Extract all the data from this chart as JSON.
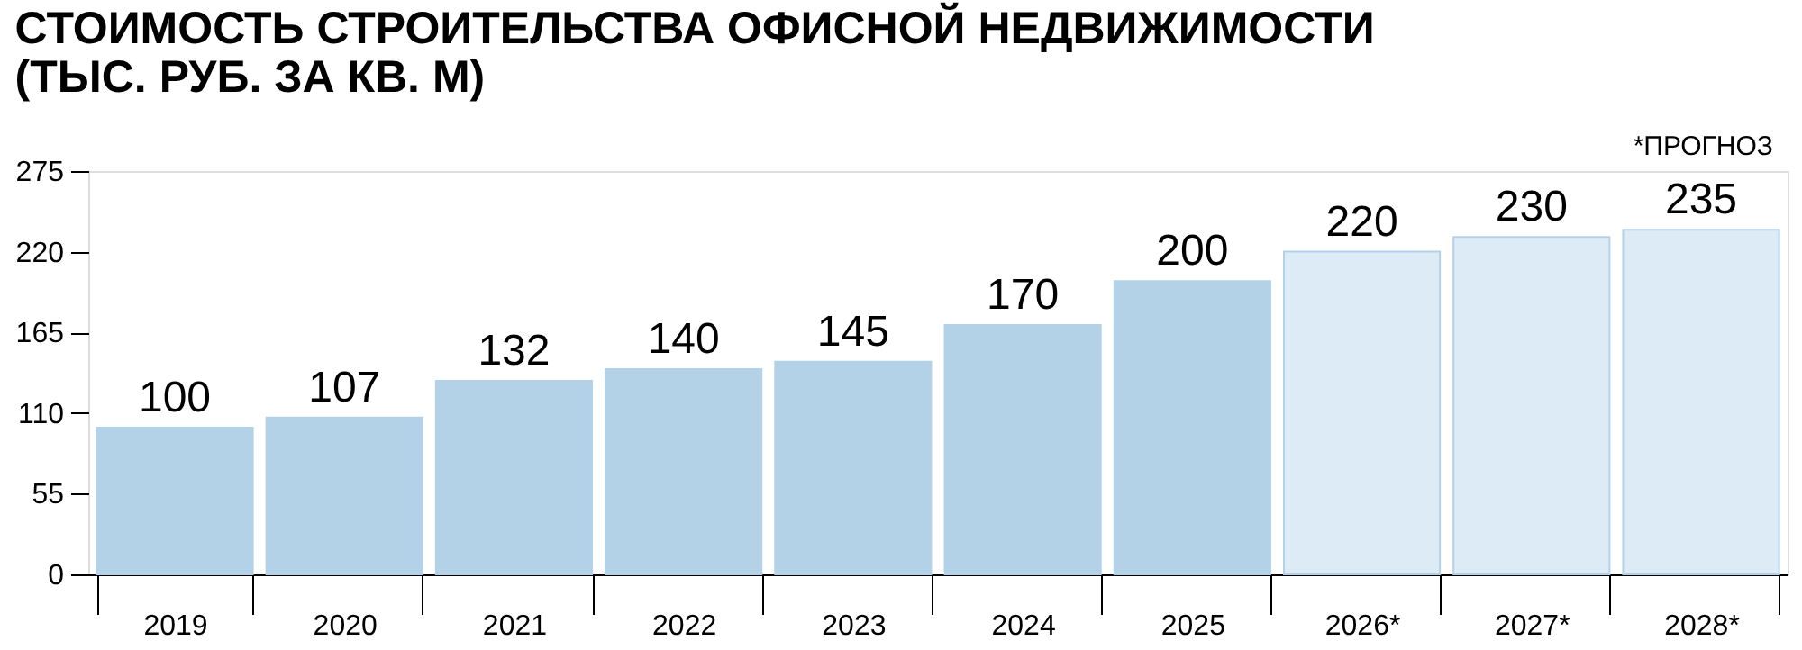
{
  "chart_data": {
    "type": "bar",
    "title": "СТОИМОСТЬ СТРОИТЕЛЬСТВА ОФИСНОЙ НЕДВИЖИМОСТИ\n(ТЫС. РУБ. ЗА КВ. М)",
    "categories": [
      "2019",
      "2020",
      "2021",
      "2022",
      "2023",
      "2024",
      "2025",
      "2026*",
      "2027*",
      "2028*"
    ],
    "values": [
      100,
      107,
      132,
      140,
      145,
      170,
      200,
      220,
      230,
      235
    ],
    "colors": [
      "#b4d2e7",
      "#b4d2e7",
      "#b4d2e7",
      "#b4d2e7",
      "#b4d2e7",
      "#b4d2e7",
      "#b4d2e7",
      "#dcebf5",
      "#dcebf5",
      "#dcebf5"
    ],
    "ylim": [
      0,
      275
    ],
    "yticks": [
      0,
      55,
      110,
      165,
      220,
      275
    ],
    "data_labels": true,
    "grid": false,
    "annotations": [
      "*ПРОГНОЗ"
    ]
  }
}
